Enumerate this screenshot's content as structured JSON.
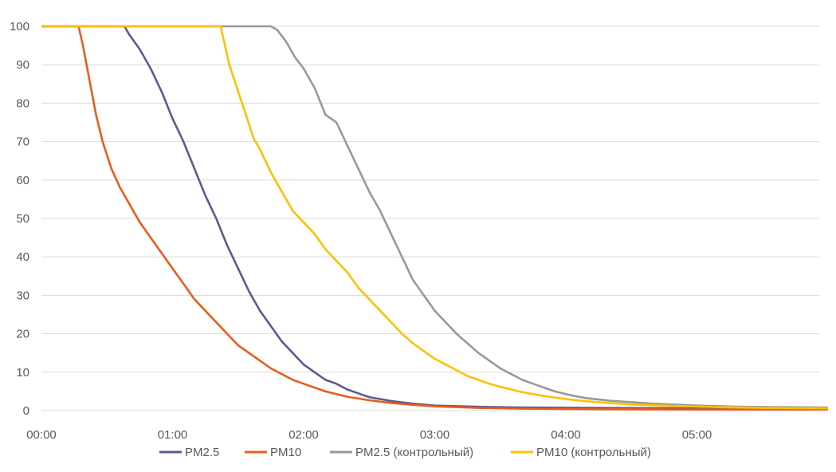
{
  "chart_data": {
    "type": "line",
    "title": "",
    "xlabel": "",
    "ylabel": "",
    "ylim": [
      0,
      100
    ],
    "xlim_minutes": [
      0,
      360
    ],
    "x_unit": "time (hh:mm)",
    "y_ticks": [
      "0",
      "10",
      "20",
      "30",
      "40",
      "50",
      "60",
      "70",
      "80",
      "90",
      "100"
    ],
    "x_ticks": [
      "00:00",
      "01:00",
      "02:00",
      "03:00",
      "04:00",
      "05:00"
    ],
    "grid": "horizontal",
    "legend_position": "bottom",
    "series": [
      {
        "name": "PM2.5",
        "color": "#5B5B8F",
        "points": [
          [
            0,
            100
          ],
          [
            38,
            100
          ],
          [
            40,
            98
          ],
          [
            45,
            94
          ],
          [
            50,
            89
          ],
          [
            55,
            83
          ],
          [
            60,
            76
          ],
          [
            65,
            70
          ],
          [
            70,
            63
          ],
          [
            75,
            56
          ],
          [
            80,
            50
          ],
          [
            85,
            43
          ],
          [
            90,
            37
          ],
          [
            95,
            31
          ],
          [
            100,
            26
          ],
          [
            105,
            22
          ],
          [
            110,
            18
          ],
          [
            115,
            15
          ],
          [
            120,
            12
          ],
          [
            125,
            10
          ],
          [
            130,
            8
          ],
          [
            135,
            7
          ],
          [
            140,
            5.5
          ],
          [
            145,
            4.5
          ],
          [
            150,
            3.5
          ],
          [
            160,
            2.5
          ],
          [
            170,
            1.8
          ],
          [
            180,
            1.3
          ],
          [
            200,
            1
          ],
          [
            220,
            0.8
          ],
          [
            250,
            0.7
          ],
          [
            300,
            0.6
          ],
          [
            360,
            0.6
          ]
        ]
      },
      {
        "name": "PM10",
        "color": "#E85D1A",
        "points": [
          [
            0,
            100
          ],
          [
            17,
            100
          ],
          [
            19,
            95
          ],
          [
            22,
            86
          ],
          [
            25,
            77
          ],
          [
            28,
            70
          ],
          [
            32,
            63
          ],
          [
            36,
            58
          ],
          [
            40,
            54
          ],
          [
            45,
            49
          ],
          [
            50,
            45
          ],
          [
            55,
            41
          ],
          [
            60,
            37
          ],
          [
            65,
            33
          ],
          [
            70,
            29
          ],
          [
            75,
            26
          ],
          [
            80,
            23
          ],
          [
            85,
            20
          ],
          [
            90,
            17
          ],
          [
            95,
            15
          ],
          [
            100,
            13
          ],
          [
            105,
            11
          ],
          [
            110,
            9.5
          ],
          [
            115,
            8
          ],
          [
            120,
            7
          ],
          [
            125,
            6
          ],
          [
            130,
            5
          ],
          [
            135,
            4.3
          ],
          [
            140,
            3.6
          ],
          [
            150,
            2.7
          ],
          [
            160,
            2
          ],
          [
            170,
            1.5
          ],
          [
            180,
            1.1
          ],
          [
            200,
            0.7
          ],
          [
            220,
            0.5
          ],
          [
            250,
            0.4
          ],
          [
            300,
            0.3
          ],
          [
            360,
            0.3
          ]
        ]
      },
      {
        "name": "PM2.5 (контрольный)",
        "color": "#999999",
        "points": [
          [
            0,
            100
          ],
          [
            105,
            100
          ],
          [
            108,
            99
          ],
          [
            112,
            96
          ],
          [
            116,
            92
          ],
          [
            120,
            89
          ],
          [
            125,
            84
          ],
          [
            130,
            77
          ],
          [
            135,
            75
          ],
          [
            140,
            69
          ],
          [
            145,
            63
          ],
          [
            150,
            57
          ],
          [
            155,
            52
          ],
          [
            160,
            46
          ],
          [
            165,
            40
          ],
          [
            170,
            34
          ],
          [
            175,
            30
          ],
          [
            180,
            26
          ],
          [
            185,
            23
          ],
          [
            190,
            20
          ],
          [
            195,
            17.5
          ],
          [
            200,
            15
          ],
          [
            205,
            13
          ],
          [
            210,
            11
          ],
          [
            215,
            9.5
          ],
          [
            220,
            8
          ],
          [
            225,
            7
          ],
          [
            230,
            6
          ],
          [
            235,
            5
          ],
          [
            240,
            4.3
          ],
          [
            245,
            3.7
          ],
          [
            250,
            3.2
          ],
          [
            260,
            2.6
          ],
          [
            270,
            2.2
          ],
          [
            280,
            1.8
          ],
          [
            300,
            1.3
          ],
          [
            320,
            1
          ],
          [
            340,
            0.9
          ],
          [
            360,
            0.8
          ]
        ]
      },
      {
        "name": "PM10  (контрольный)",
        "color": "#FFC000",
        "points": [
          [
            0,
            100
          ],
          [
            82,
            100
          ],
          [
            84,
            95
          ],
          [
            86,
            90
          ],
          [
            90,
            83
          ],
          [
            93,
            78
          ],
          [
            97,
            71
          ],
          [
            100,
            68
          ],
          [
            105,
            62
          ],
          [
            110,
            57
          ],
          [
            115,
            52
          ],
          [
            120,
            49
          ],
          [
            125,
            46
          ],
          [
            130,
            42
          ],
          [
            135,
            39
          ],
          [
            140,
            36
          ],
          [
            145,
            32
          ],
          [
            150,
            29
          ],
          [
            155,
            26
          ],
          [
            160,
            23
          ],
          [
            165,
            20
          ],
          [
            170,
            17.5
          ],
          [
            175,
            15.5
          ],
          [
            180,
            13.5
          ],
          [
            185,
            12
          ],
          [
            190,
            10.5
          ],
          [
            195,
            9
          ],
          [
            200,
            8
          ],
          [
            205,
            7
          ],
          [
            210,
            6.2
          ],
          [
            215,
            5.5
          ],
          [
            220,
            4.8
          ],
          [
            230,
            3.8
          ],
          [
            240,
            3
          ],
          [
            250,
            2.4
          ],
          [
            260,
            2
          ],
          [
            270,
            1.6
          ],
          [
            290,
            1.2
          ],
          [
            310,
            0.9
          ],
          [
            330,
            0.7
          ],
          [
            360,
            0.6
          ]
        ]
      }
    ]
  }
}
